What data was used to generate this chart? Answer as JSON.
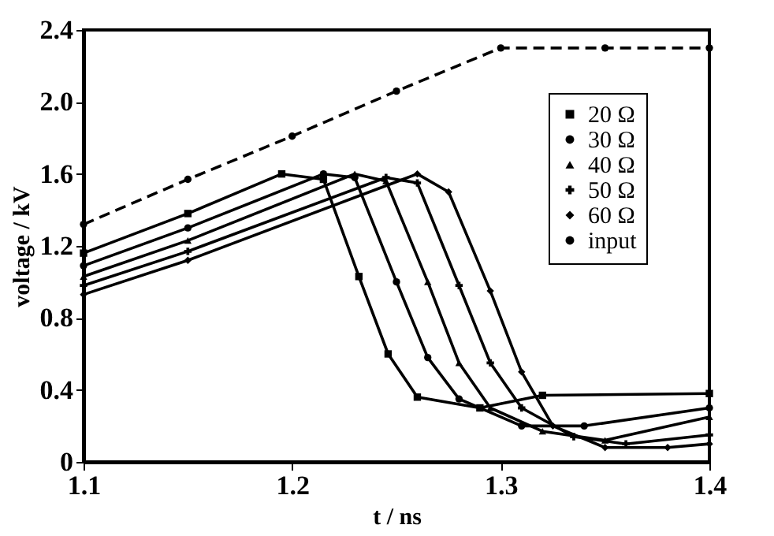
{
  "chart_data": {
    "type": "line",
    "xlabel": "t / ns",
    "ylabel": "voltage / kV",
    "xlim": [
      1.1,
      1.4
    ],
    "xticks": [
      1.1,
      1.2,
      1.3,
      1.4
    ],
    "ylim": [
      0,
      2.4
    ],
    "yticks": [
      0,
      0.4,
      0.8,
      1.2,
      1.6,
      {
        "value": 2,
        "label": "2.0"
      },
      2.4
    ],
    "grid": false,
    "legend": "top right",
    "series": [
      {
        "name": "20 Ω",
        "color": "#000000",
        "marker": "square",
        "line_style": "solid",
        "x": [
          1.1,
          1.15,
          1.195,
          1.215,
          1.232,
          1.246,
          1.26,
          1.29,
          1.32,
          1.4
        ],
        "values": [
          1.16,
          1.38,
          1.6,
          1.57,
          1.03,
          0.6,
          0.36,
          0.3,
          0.37,
          0.38
        ]
      },
      {
        "name": "30 Ω",
        "color": "#000000",
        "marker": "circle",
        "line_style": "solid",
        "x": [
          1.1,
          1.15,
          1.215,
          1.23,
          1.25,
          1.265,
          1.28,
          1.31,
          1.34,
          1.4
        ],
        "values": [
          1.09,
          1.3,
          1.6,
          1.58,
          1.0,
          0.58,
          0.35,
          0.2,
          0.2,
          0.3
        ]
      },
      {
        "name": "40 Ω",
        "color": "#000000",
        "marker": "triangle",
        "line_style": "solid",
        "x": [
          1.1,
          1.15,
          1.23,
          1.245,
          1.265,
          1.28,
          1.295,
          1.32,
          1.35,
          1.4
        ],
        "values": [
          1.03,
          1.23,
          1.6,
          1.56,
          1.0,
          0.55,
          0.3,
          0.17,
          0.12,
          0.25
        ]
      },
      {
        "name": "50 Ω",
        "color": "#000000",
        "marker": "cross",
        "line_style": "solid",
        "x": [
          1.1,
          1.15,
          1.245,
          1.26,
          1.28,
          1.295,
          1.31,
          1.335,
          1.36,
          1.4
        ],
        "values": [
          0.98,
          1.17,
          1.58,
          1.55,
          0.98,
          0.55,
          0.3,
          0.14,
          0.1,
          0.15
        ]
      },
      {
        "name": "60 Ω",
        "color": "#000000",
        "marker": "diamond",
        "line_style": "solid",
        "x": [
          1.1,
          1.15,
          1.26,
          1.275,
          1.295,
          1.31,
          1.325,
          1.35,
          1.38,
          1.4
        ],
        "values": [
          0.93,
          1.12,
          1.6,
          1.5,
          0.95,
          0.5,
          0.2,
          0.08,
          0.08,
          0.1
        ]
      },
      {
        "name": "input",
        "color": "#000000",
        "marker": "circle",
        "line_style": "dashed",
        "x": [
          1.1,
          1.15,
          1.2,
          1.25,
          1.3,
          1.35,
          1.4
        ],
        "values": [
          1.32,
          1.57,
          1.81,
          2.06,
          2.3,
          2.3,
          2.3
        ]
      }
    ]
  }
}
